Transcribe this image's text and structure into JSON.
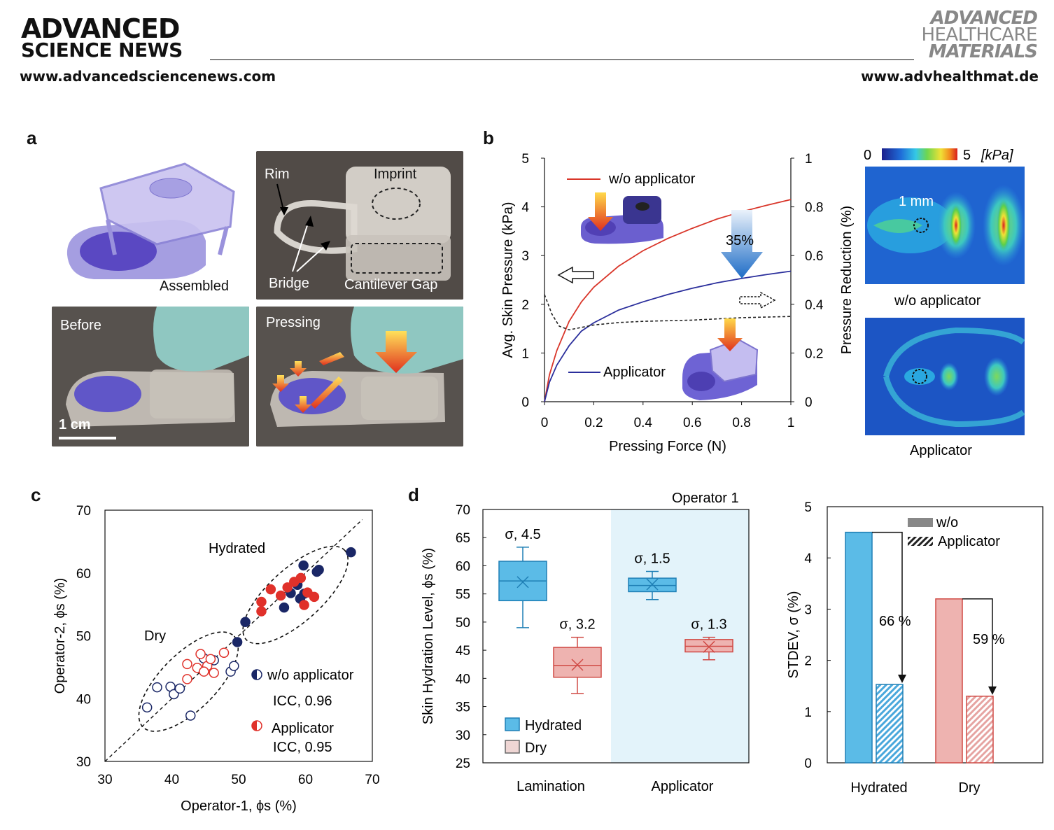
{
  "header": {
    "left_logo_line1": "ADVANCED",
    "left_logo_line2": "SCIENCE NEWS",
    "left_url": "www.advancedsciencenews.com",
    "right_logo_line1": "ADVANCED",
    "right_logo_line2": "HEALTHCARE",
    "right_logo_line3": "MATERIALS",
    "right_url": "www.advhealthmat.de"
  },
  "panel_a": {
    "letter": "a",
    "assembled": "Assembled",
    "rim": "Rim",
    "imprint": "Imprint",
    "bridge": "Bridge",
    "cantilever_gap": "Cantilever Gap",
    "before": "Before",
    "pressing": "Pressing",
    "scale": "1 cm"
  },
  "panel_b": {
    "letter": "b",
    "legend_wo": "w/o applicator",
    "legend_app": "Applicator",
    "reduction_label": "35%",
    "heatmap_scale_min": "0",
    "heatmap_scale_max": "5",
    "heatmap_unit": "[kPa]",
    "heatmap_mm": "1 mm",
    "heatmap_wo_caption": "w/o applicator",
    "heatmap_app_caption": "Applicator"
  },
  "panel_c": {
    "letter": "c",
    "hydrated_label": "Hydrated",
    "dry_label": "Dry",
    "legend_wo": "w/o applicator",
    "icc_wo": "ICC, 0.96",
    "legend_app": "Applicator",
    "icc_app": "ICC, 0.95"
  },
  "panel_d": {
    "letter": "d",
    "operator": "Operator 1",
    "legend_hydrated": "Hydrated",
    "legend_dry": "Dry",
    "bar_legend_wo": "w/o",
    "bar_legend_app": "Applicator",
    "pct_hydrated": "66 %",
    "pct_dry": "59 %"
  },
  "colors": {
    "red_line": "#d9362a",
    "blue_line": "#2b2f9c",
    "hydrated_fill": "#5bbbe7",
    "dry_fill": "#eeb3b0",
    "navy_dot": "#1a2766",
    "red_dot": "#e0312a",
    "shade": "#e3f3fa"
  },
  "chart_data": [
    {
      "type": "line",
      "id": "b",
      "xlabel": "Pressing Force (N)",
      "ylabel": "Avg. Skin Pressure (kPa)",
      "y2label": "Pressure Reduction (%)",
      "xlim": [
        0,
        1
      ],
      "ylim": [
        0,
        5
      ],
      "y2lim": [
        0,
        1
      ],
      "x_ticks": [
        "0",
        "0.2",
        "0.4",
        "0.6",
        "0.8",
        "1"
      ],
      "y_ticks": [
        "0",
        "1",
        "2",
        "3",
        "4",
        "5"
      ],
      "y2_ticks": [
        "0",
        "0.2",
        "0.4",
        "0.6",
        "0.8",
        "1"
      ],
      "series": [
        {
          "name": "w/o applicator",
          "axis": "left",
          "x": [
            0,
            0.02,
            0.05,
            0.1,
            0.15,
            0.2,
            0.3,
            0.4,
            0.5,
            0.6,
            0.7,
            0.8,
            0.9,
            1.0
          ],
          "y": [
            0,
            0.55,
            1.05,
            1.65,
            2.05,
            2.35,
            2.78,
            3.1,
            3.35,
            3.56,
            3.75,
            3.9,
            4.03,
            4.15
          ]
        },
        {
          "name": "Applicator",
          "axis": "left",
          "x": [
            0,
            0.02,
            0.05,
            0.1,
            0.15,
            0.2,
            0.3,
            0.4,
            0.5,
            0.6,
            0.7,
            0.8,
            0.9,
            1.0
          ],
          "y": [
            0,
            0.4,
            0.75,
            1.15,
            1.45,
            1.62,
            1.88,
            2.05,
            2.2,
            2.33,
            2.44,
            2.53,
            2.61,
            2.68
          ]
        },
        {
          "name": "Pressure Reduction",
          "axis": "right",
          "x": [
            0,
            0.03,
            0.06,
            0.1,
            0.15,
            0.2,
            0.3,
            0.4,
            0.6,
            0.8,
            1.0
          ],
          "y": [
            0.44,
            0.36,
            0.31,
            0.295,
            0.305,
            0.315,
            0.325,
            0.33,
            0.335,
            0.345,
            0.35
          ]
        }
      ]
    },
    {
      "type": "scatter",
      "id": "c",
      "xlabel": "Operator-1, ϕs (%)",
      "ylabel": "Operator-2, ϕs (%)",
      "xlim": [
        30,
        70
      ],
      "ylim": [
        30,
        70
      ],
      "x_ticks": [
        "30",
        "40",
        "50",
        "60",
        "70"
      ],
      "y_ticks": [
        "30",
        "40",
        "50",
        "60",
        "70"
      ],
      "series": [
        {
          "name": "w/o applicator hydrated",
          "points": [
            [
              66.8,
              63.3
            ],
            [
              62,
              60.5
            ],
            [
              61.7,
              60.2
            ],
            [
              59.7,
              61.2
            ],
            [
              58.8,
              58.1
            ],
            [
              59.8,
              56.7
            ],
            [
              59.2,
              55.9
            ],
            [
              57.8,
              56.8
            ],
            [
              56.8,
              54.5
            ],
            [
              51,
              52.2
            ],
            [
              49.8,
              49
            ]
          ]
        },
        {
          "name": "Applicator hydrated",
          "points": [
            [
              53.4,
              55.4
            ],
            [
              53.4,
              53.9
            ],
            [
              54.8,
              57.4
            ],
            [
              56.3,
              56.4
            ],
            [
              57.3,
              57.7
            ],
            [
              58.3,
              58.6
            ],
            [
              59.3,
              59.2
            ],
            [
              60.3,
              56.9
            ],
            [
              61.3,
              56.2
            ],
            [
              59.8,
              54.9
            ]
          ]
        },
        {
          "name": "w/o applicator dry",
          "points": [
            [
              36.3,
              38.6
            ],
            [
              37.8,
              41.8
            ],
            [
              39.8,
              41.9
            ],
            [
              40.3,
              40.7
            ],
            [
              41.2,
              41.6
            ],
            [
              42.8,
              37.3
            ],
            [
              44.8,
              46.4
            ],
            [
              46.3,
              46.1
            ],
            [
              48.8,
              44.3
            ],
            [
              49.3,
              45.2
            ]
          ]
        },
        {
          "name": "Applicator dry",
          "points": [
            [
              42.3,
              45.5
            ],
            [
              42.3,
              43.1
            ],
            [
              44.3,
              47.1
            ],
            [
              45.3,
              45.2
            ],
            [
              45.8,
              46.3
            ],
            [
              46.3,
              44.1
            ],
            [
              47.8,
              47.3
            ],
            [
              43.8,
              44.9
            ],
            [
              44.8,
              44.3
            ]
          ]
        }
      ]
    },
    {
      "type": "box",
      "id": "d_left",
      "ylabel": "Skin Hydration Level, ϕs (%)",
      "ylim": [
        25,
        70
      ],
      "y_ticks": [
        "25",
        "30",
        "35",
        "40",
        "45",
        "50",
        "55",
        "60",
        "65",
        "70"
      ],
      "groups": [
        "Lamination",
        "Applicator"
      ],
      "boxes": [
        {
          "group": "Lamination",
          "series": "Hydrated",
          "min": 49,
          "q1": 53.8,
          "median": 57.3,
          "mean": 57.1,
          "q3": 60.8,
          "max": 63.3,
          "label": "σ, 4.5"
        },
        {
          "group": "Lamination",
          "series": "Dry",
          "min": 37.3,
          "q1": 40.2,
          "median": 42.3,
          "mean": 42.4,
          "q3": 45.5,
          "max": 47.3,
          "label": "σ, 3.2"
        },
        {
          "group": "Applicator",
          "series": "Hydrated",
          "min": 54,
          "q1": 55.4,
          "median": 56.5,
          "mean": 56.7,
          "q3": 57.8,
          "max": 59,
          "label": "σ, 1.5"
        },
        {
          "group": "Applicator",
          "series": "Dry",
          "min": 43.3,
          "q1": 44.7,
          "median": 45.7,
          "mean": 45.6,
          "q3": 46.9,
          "max": 47.3,
          "label": "σ, 1.3"
        }
      ]
    },
    {
      "type": "bar",
      "id": "d_right",
      "ylabel": "STDEV, σ (%)",
      "ylim": [
        0,
        5
      ],
      "y_ticks": [
        "0",
        "1",
        "2",
        "3",
        "4",
        "5"
      ],
      "categories": [
        "Hydrated",
        "Dry"
      ],
      "series": [
        {
          "name": "w/o",
          "values": [
            4.5,
            3.2
          ]
        },
        {
          "name": "Applicator",
          "values": [
            1.53,
            1.3
          ]
        }
      ]
    }
  ]
}
